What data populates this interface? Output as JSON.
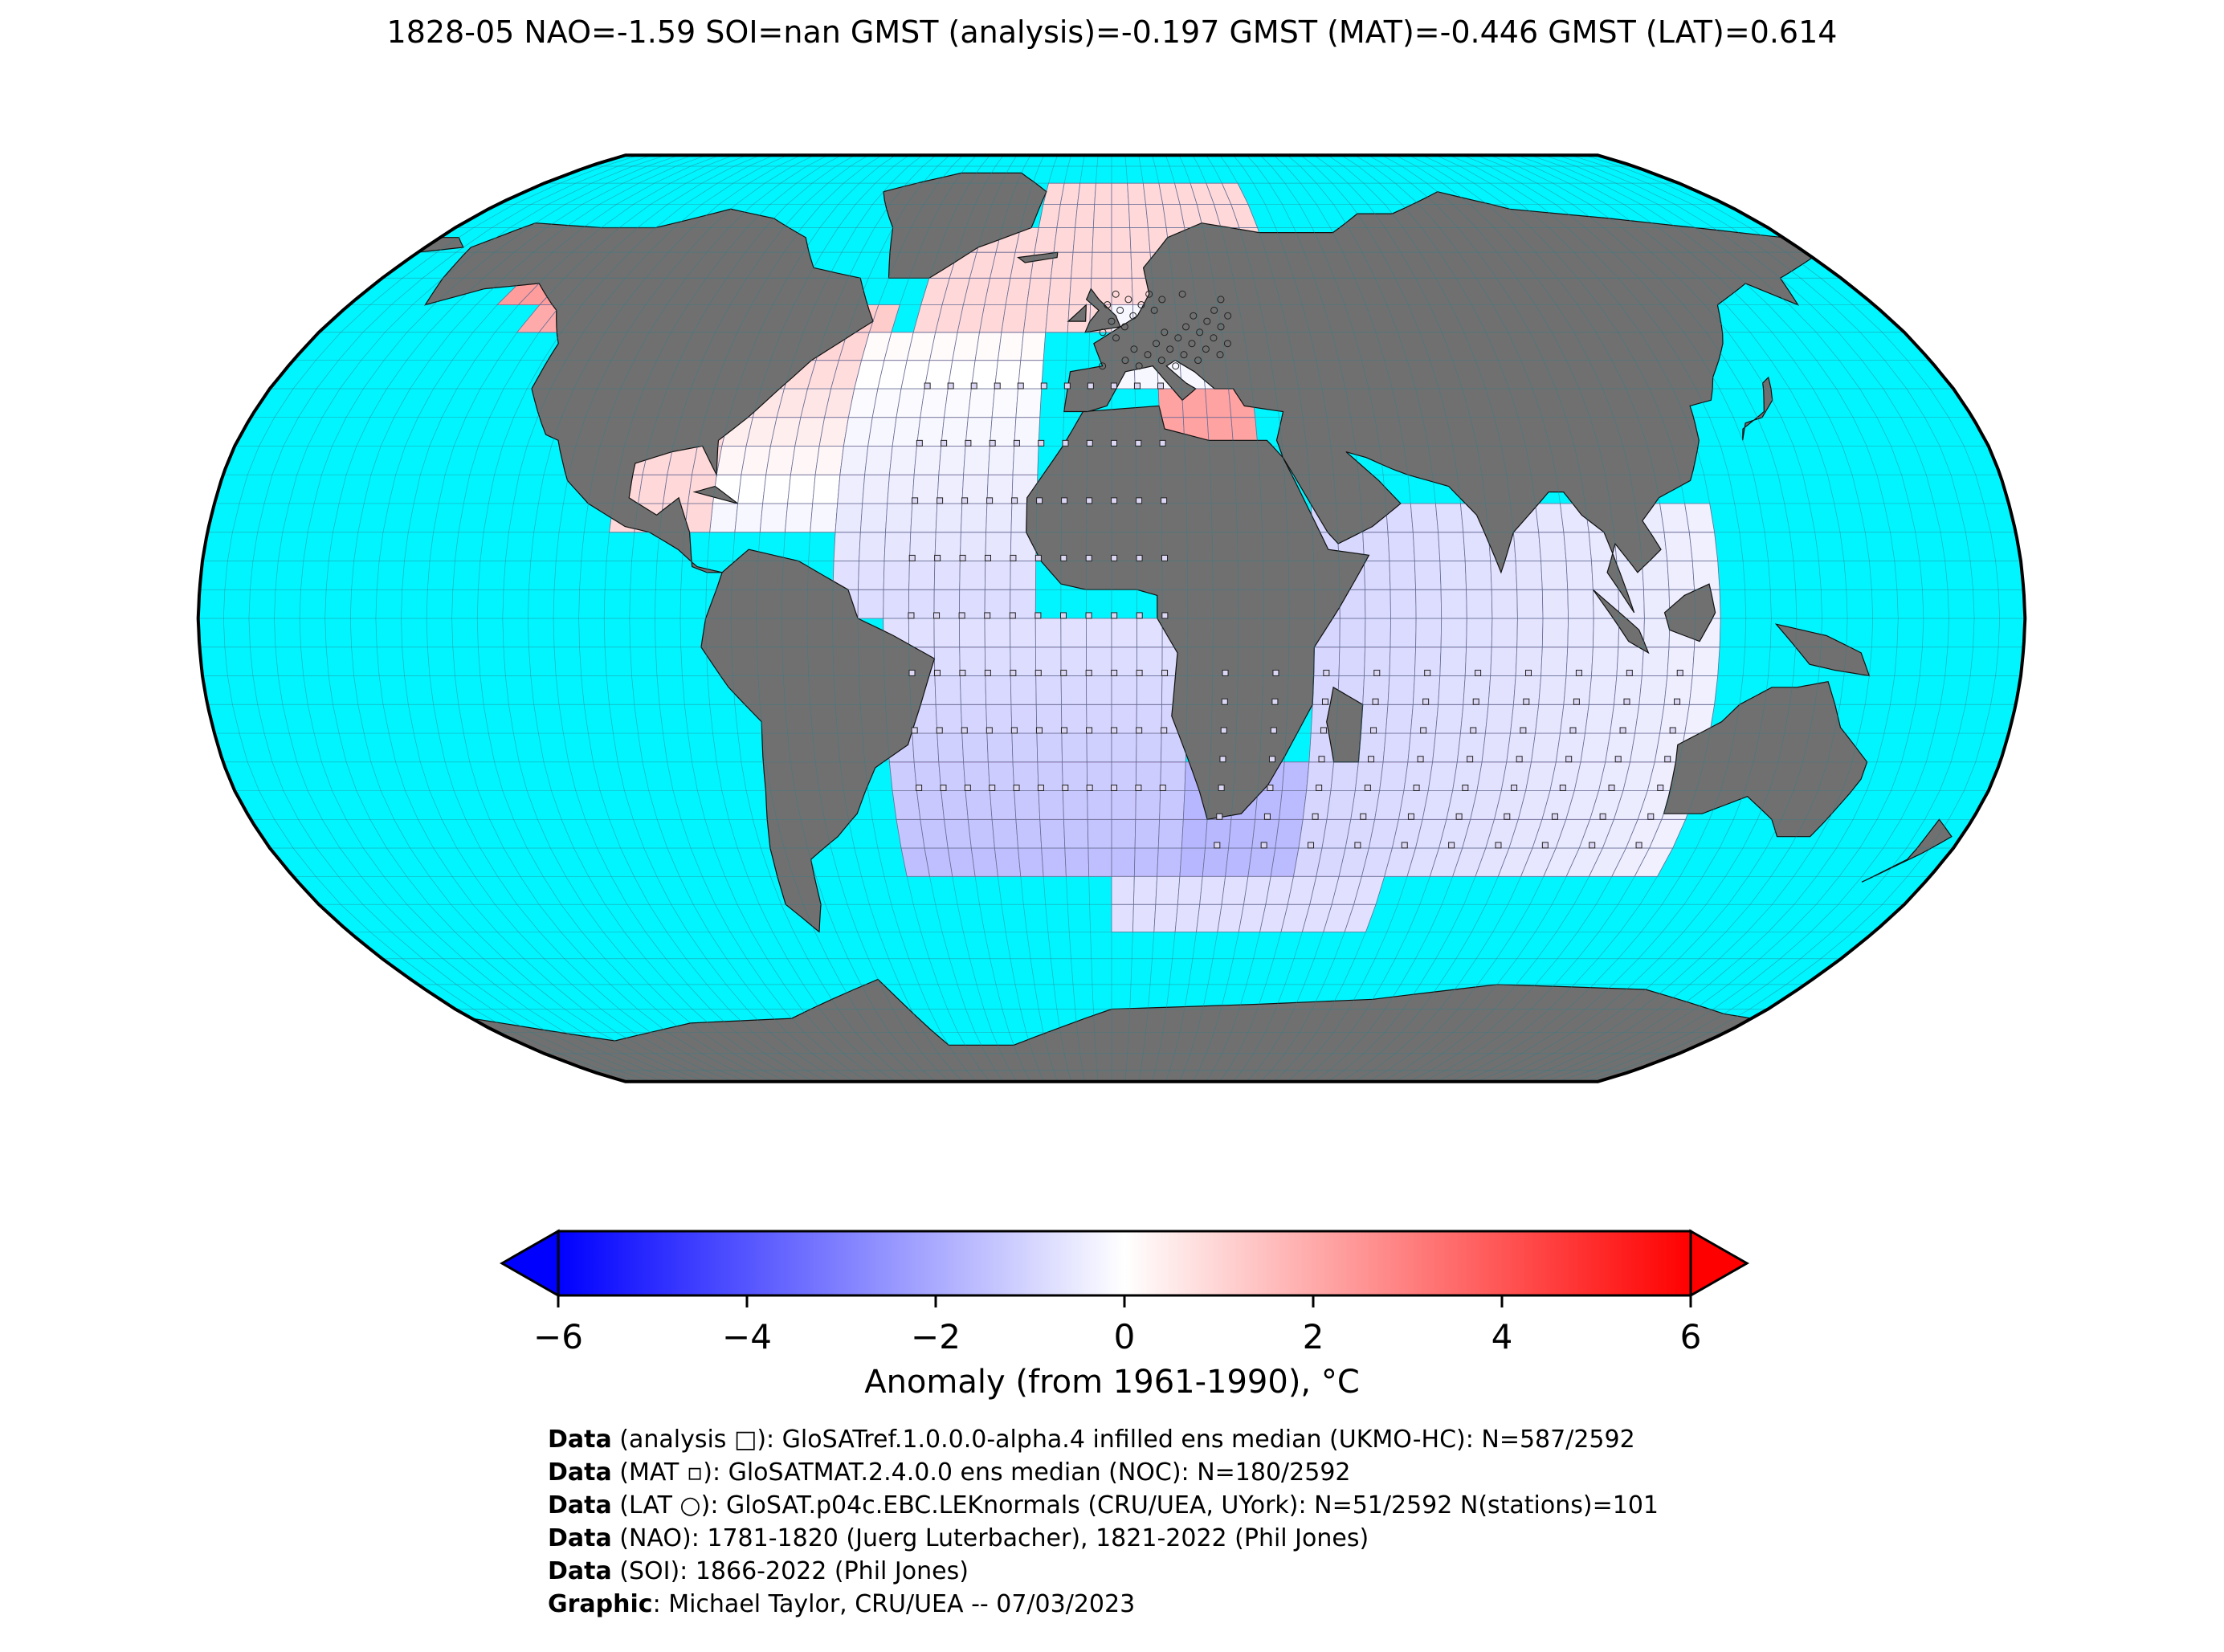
{
  "title": "1828-05 NAO=-1.59 SOI=nan GMST (analysis)=-0.197 GMST (MAT)=-0.446 GMST (LAT)=0.614",
  "map": {
    "projection": "Robinson",
    "ocean_color": "#00f5ff",
    "land_color": "#707070",
    "grid_color": "#2f7d8a",
    "anomaly_grid_color": "#9b6aa3"
  },
  "colorbar": {
    "label": "Anomaly (from 1961-1990), °C",
    "ticks": [
      "−6",
      "−4",
      "−2",
      "0",
      "2",
      "4",
      "6"
    ],
    "min": -6,
    "max": 6,
    "colors": [
      "#0000ff",
      "#ffffff",
      "#ff0000"
    ],
    "extend": "both"
  },
  "credits": [
    {
      "key": "Data",
      "text": " (analysis □): GloSATref.1.0.0.0-alpha.4 infilled ens median (UKMO-HC): N=587/2592"
    },
    {
      "key": "Data",
      "text": " (MAT ▫): GloSATMAT.2.4.0.0 ens median (NOC): N=180/2592"
    },
    {
      "key": "Data",
      "text": " (LAT ○): GloSAT.p04c.EBC.LEKnormals (CRU/UEA, UYork): N=51/2592 N(stations)=101"
    },
    {
      "key": "Data",
      "text": " (NAO): 1781-1820 (Juerg Luterbacher), 1821-2022 (Phil Jones)"
    },
    {
      "key": "Data",
      "text": " (SOI): 1866-2022 (Phil Jones)"
    },
    {
      "key": "Graphic",
      "text": ": Michael Taylor, CRU/UEA -- 07/03/2023"
    }
  ]
}
